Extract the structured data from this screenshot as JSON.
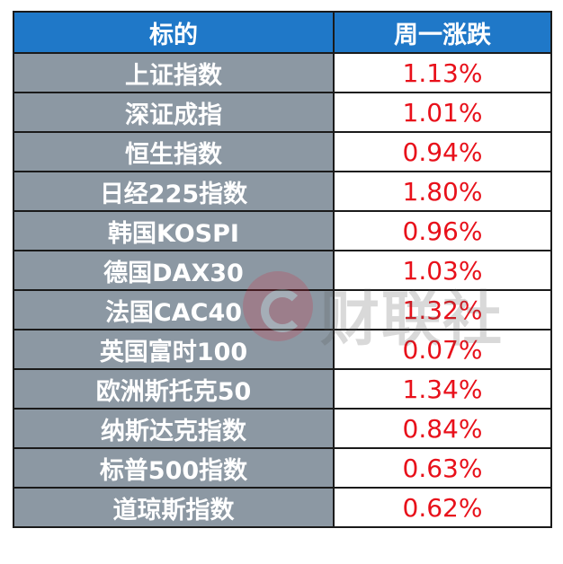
{
  "table": {
    "headers": [
      "标的",
      "周一涨跌"
    ],
    "rows": [
      {
        "name": "上证指数",
        "change": "1.13%"
      },
      {
        "name": "深证成指",
        "change": "1.01%"
      },
      {
        "name": "恒生指数",
        "change": "0.94%"
      },
      {
        "name": "日经225指数",
        "change": "1.80%"
      },
      {
        "name": "韩国KOSPI",
        "change": "0.96%"
      },
      {
        "name": "德国DAX30",
        "change": "1.03%"
      },
      {
        "name": "法国CAC40",
        "change": "1.32%"
      },
      {
        "name": "英国富时100",
        "change": "0.07%"
      },
      {
        "name": "欧洲斯托克50",
        "change": "1.34%"
      },
      {
        "name": "纳斯达克指数",
        "change": "0.84%"
      },
      {
        "name": "标普500指数",
        "change": "0.63%"
      },
      {
        "name": "道琼斯指数",
        "change": "0.62%"
      }
    ]
  },
  "watermark": {
    "text": "财联社"
  },
  "colors": {
    "header_bg": "#1f78c8",
    "name_bg": "#8c98a3",
    "positive_change": "#e8101a"
  }
}
